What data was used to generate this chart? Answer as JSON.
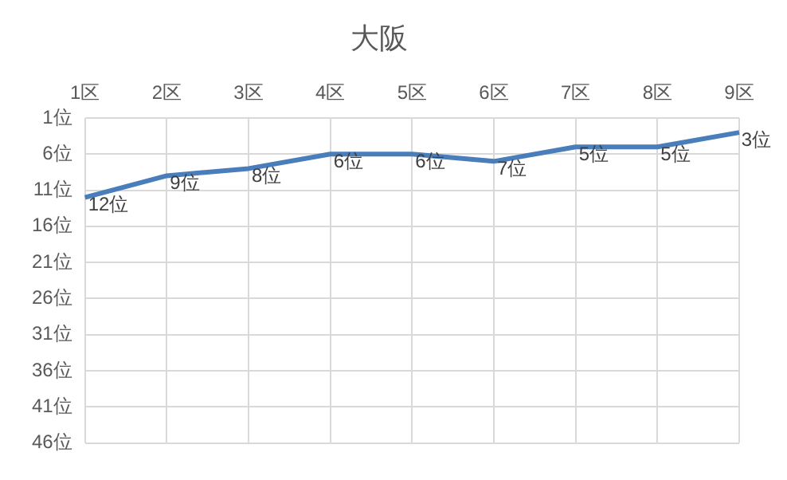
{
  "chart_data": {
    "type": "line",
    "title": "大阪",
    "categories": [
      "1区",
      "2区",
      "3区",
      "4区",
      "5区",
      "6区",
      "7区",
      "8区",
      "9区"
    ],
    "series": [
      {
        "color": "#4a7ebb",
        "values": [
          12,
          9,
          8,
          6,
          6,
          7,
          5,
          5,
          3
        ],
        "value_labels": [
          "12位",
          "9位",
          "8位",
          "6位",
          "6位",
          "7位",
          "5位",
          "5位",
          "3位"
        ]
      }
    ],
    "ylim": [
      46,
      1
    ],
    "yticks": [
      {
        "value": 1,
        "label": "1位"
      },
      {
        "value": 6,
        "label": "6位"
      },
      {
        "value": 11,
        "label": "11位"
      },
      {
        "value": 16,
        "label": "16位"
      },
      {
        "value": 21,
        "label": "21位"
      },
      {
        "value": 26,
        "label": "26位"
      },
      {
        "value": 31,
        "label": "31位"
      },
      {
        "value": 36,
        "label": "36位"
      },
      {
        "value": 41,
        "label": "41位"
      },
      {
        "value": 46,
        "label": "46位"
      }
    ],
    "grid": true,
    "legend": false,
    "marker": "none",
    "line_style": "solid"
  }
}
